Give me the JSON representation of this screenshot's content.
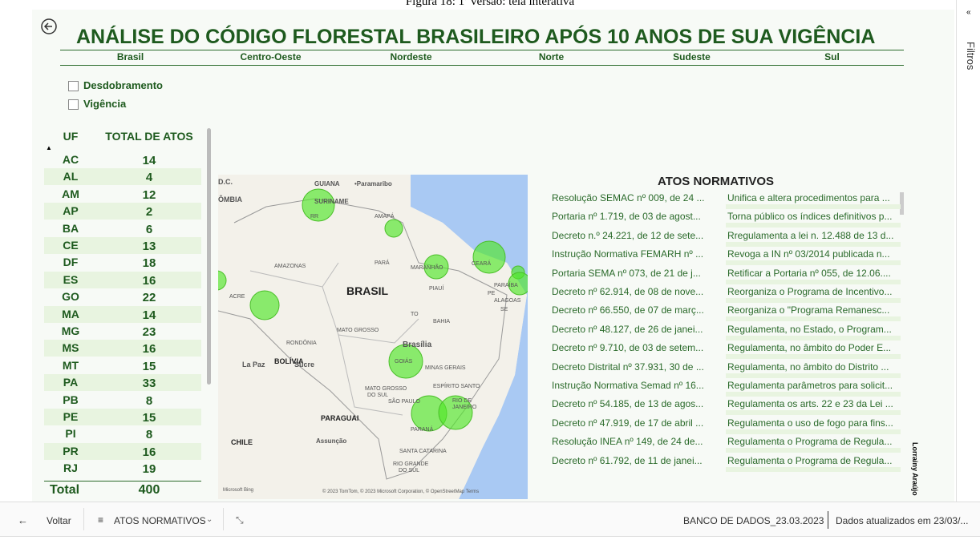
{
  "caption": "Figura 18: 1ª versão: tela interativa",
  "header": {
    "title": "ANÁLISE DO CÓDIGO FLORESTAL BRASILEIRO APÓS 10 ANOS DE SUA VIGÊNCIA"
  },
  "tabs": [
    "Brasil",
    "Centro-Oeste",
    "Nordeste",
    "Norte",
    "Sudeste",
    "Sul"
  ],
  "filters": [
    "Desdobramento",
    "Vigência"
  ],
  "table": {
    "columns": [
      "UF",
      "TOTAL DE ATOS"
    ],
    "rows": [
      [
        "AC",
        "14"
      ],
      [
        "AL",
        "4"
      ],
      [
        "AM",
        "12"
      ],
      [
        "AP",
        "2"
      ],
      [
        "BA",
        "6"
      ],
      [
        "CE",
        "13"
      ],
      [
        "DF",
        "18"
      ],
      [
        "ES",
        "16"
      ],
      [
        "GO",
        "22"
      ],
      [
        "MA",
        "14"
      ],
      [
        "MG",
        "23"
      ],
      [
        "MS",
        "16"
      ],
      [
        "MT",
        "15"
      ],
      [
        "PA",
        "33"
      ],
      [
        "PB",
        "8"
      ],
      [
        "PE",
        "15"
      ],
      [
        "PI",
        "8"
      ],
      [
        "PR",
        "16"
      ],
      [
        "RJ",
        "19"
      ]
    ],
    "total": [
      "Total",
      "400"
    ]
  },
  "map": {
    "labels": [
      "D.C.",
      "GUIANA",
      "•Paramaribo",
      "ÔMBIA",
      "SURINAME",
      "AMAPÁ",
      "RR",
      "AMAZONAS",
      "PARÁ",
      "MARANHÃO",
      "CEARÁ",
      "PARAÍBA",
      "BRASIL",
      "PIAUÍ",
      "PE",
      "ALAGOAS",
      "SE",
      "ACRE",
      "TO",
      "BAHIA",
      "RONDÔNIA",
      "MATO GROSSO",
      "Brasília",
      "GOIÁS",
      "MINAS GERAIS",
      "La Paz",
      "BOLÍVIA",
      "Sucre",
      "MATO GROSSO",
      "DO SUL",
      "ESPÍRITO SANTO",
      "SÃO PAULO",
      "RIO DE",
      "JANEIRO",
      "PARAGUAI",
      "PARANÁ",
      "CHILE",
      "Assunção",
      "SANTA CATARINA",
      "RIO GRANDE",
      "DO SUL"
    ],
    "attribution": "© 2023 TomTom, © 2023 Microsoft Corporation, © OpenStreetMap  Terms",
    "logo": "Microsoft Bing"
  },
  "atos": {
    "title": "ATOS NORMATIVOS",
    "rows": [
      [
        "Resolução SEMAC nº 009, de 24 ...",
        "Unifica e altera procedimentos para ..."
      ],
      [
        "Portaria nº 1.719, de 03 de agost...",
        "Torna público os índices definitivos p..."
      ],
      [
        "Decreto n.º 24.221, de 12 de sete...",
        "Rregulamenta a lei n. 12.488 de 13 d..."
      ],
      [
        "Instrução Normativa FEMARH nº ...",
        "Revoga a IN nº 03/2014 publicada n..."
      ],
      [
        "Portaria SEMA nº 073, de 21 de j...",
        "Retificar a Portaria nº 055, de 12.06...."
      ],
      [
        "Decreto nº 62.914, de 08 de nove...",
        "Reorganiza o Programa de Incentivo..."
      ],
      [
        "Decreto nº 66.550, de 07 de març...",
        "Reorganiza o \"Programa Remanesc..."
      ],
      [
        "Decreto nº 48.127, de 26 de janei...",
        "Regulamenta, no Estado, o Program..."
      ],
      [
        "Decreto nº 9.710, de 03 de setem...",
        "Regulamenta, no âmbito do Poder E..."
      ],
      [
        "Decreto Distrital nº 37.931, 30 de ...",
        "Regulamenta, no âmbito do Distrito ..."
      ],
      [
        "Instrução Normativa Semad nº 16...",
        "Regulamenta parâmetros para solicit..."
      ],
      [
        "Decreto nº 54.185, de 13 de agos...",
        "Regulamenta os arts. 22 e 23 da Lei ..."
      ],
      [
        "Decreto nº 47.919, de 17 de abril ...",
        "Regulamenta o uso de fogo para fins..."
      ],
      [
        "Resolução INEA nº 149, de 24 de...",
        "Regulamenta o Programa de Regula..."
      ],
      [
        "Decreto nº 61.792, de 11 de janei...",
        "Regulamenta o Programa de Regula..."
      ]
    ]
  },
  "signature": "Lorrainy Araújo",
  "side": {
    "label": "Filtros"
  },
  "bottom": {
    "back": "Voltar",
    "page": "ATOS NORMATIVOS",
    "dataset": "BANCO DE DADOS_23.03.2023",
    "updated": "Dados atualizados em 23/03/..."
  }
}
